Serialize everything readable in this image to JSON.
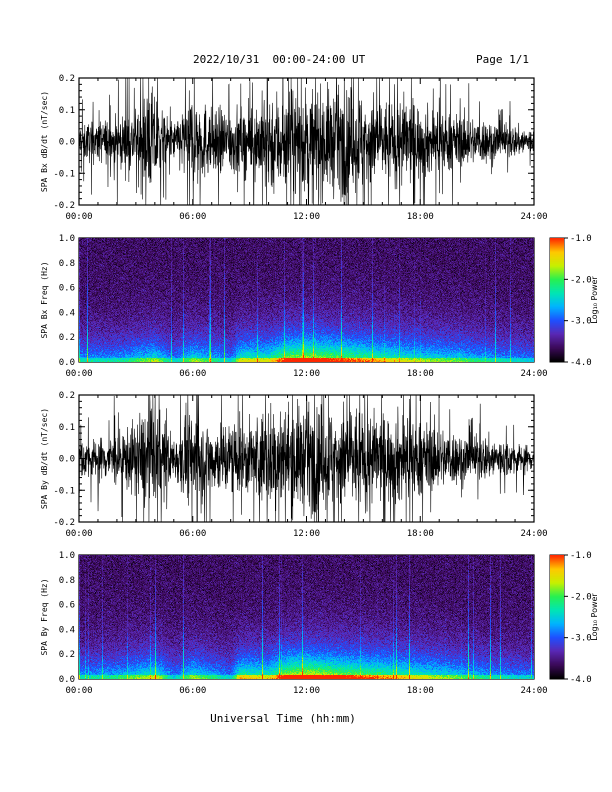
{
  "header": {
    "title": "2022/10/31  00:00-24:00 UT",
    "page": "Page 1/1"
  },
  "x_axis": {
    "label": "Universal Time (hh:mm)",
    "ticks": [
      "00:00",
      "06:00",
      "12:00",
      "18:00",
      "24:00"
    ],
    "range_hours": [
      0,
      24
    ]
  },
  "colors": {
    "trace": "#000000",
    "colormap": [
      "#000000",
      "#3c0a5a",
      "#5a28b4",
      "#1e50ff",
      "#00b4ff",
      "#00e6b4",
      "#28f050",
      "#c8f000",
      "#ffc800",
      "#ff2800"
    ]
  },
  "chart_data": [
    {
      "type": "line",
      "name": "bx-time-series",
      "ylabel": "SPA Bx dB/dt (nT/sec)",
      "ylim": [
        -0.2,
        0.2
      ],
      "yticks": [
        "0.2",
        "0.1",
        "0.0",
        "-0.1",
        "-0.2"
      ],
      "envelope_x_hours": [
        0,
        1,
        2,
        3,
        3.5,
        4,
        4.5,
        5,
        6,
        7,
        8,
        9,
        10,
        11,
        12,
        13,
        14,
        15,
        16,
        17,
        18,
        19,
        20,
        21,
        22,
        23,
        24
      ],
      "envelope_amplitude": [
        0.07,
        0.08,
        0.09,
        0.12,
        0.2,
        0.2,
        0.1,
        0.07,
        0.2,
        0.12,
        0.13,
        0.12,
        0.2,
        0.2,
        0.2,
        0.2,
        0.2,
        0.2,
        0.15,
        0.18,
        0.14,
        0.12,
        0.1,
        0.09,
        0.08,
        0.06,
        0.05
      ]
    },
    {
      "type": "heatmap",
      "name": "bx-spectrogram",
      "ylabel": "SPA Bx Freq (Hz)",
      "ylim": [
        0,
        1.0
      ],
      "yticks": [
        "1.0",
        "0.8",
        "0.6",
        "0.4",
        "0.2",
        "0.0"
      ],
      "colorbar_label": "Log₁₀ Power",
      "colorbar_ticks": [
        "-1.0",
        "-2.0",
        "-3.0",
        "-4.0"
      ],
      "zlim": [
        -4.0,
        -1.0
      ],
      "activity_x_hours": [
        0,
        2,
        4,
        5,
        6,
        8,
        8.5,
        10,
        11,
        12,
        13,
        14,
        15,
        16,
        18,
        20,
        22,
        24
      ],
      "activity_level": [
        0.35,
        0.35,
        0.5,
        0.3,
        0.5,
        0.3,
        0.55,
        0.55,
        0.75,
        0.8,
        0.75,
        0.7,
        0.65,
        0.6,
        0.5,
        0.45,
        0.35,
        0.3
      ]
    },
    {
      "type": "line",
      "name": "by-time-series",
      "ylabel": "SPA By dB/dt (nT/sec)",
      "ylim": [
        -0.2,
        0.2
      ],
      "yticks": [
        "0.2",
        "0.1",
        "0.0",
        "-0.1",
        "-0.2"
      ],
      "envelope_x_hours": [
        0,
        1,
        2,
        3,
        3.5,
        4,
        4.5,
        5,
        6,
        7,
        8,
        9,
        10,
        11,
        12,
        13,
        14,
        15,
        16,
        17,
        18,
        19,
        20,
        21,
        22,
        23,
        24
      ],
      "envelope_amplitude": [
        0.07,
        0.08,
        0.1,
        0.14,
        0.2,
        0.2,
        0.14,
        0.08,
        0.2,
        0.13,
        0.15,
        0.14,
        0.2,
        0.2,
        0.2,
        0.2,
        0.2,
        0.2,
        0.16,
        0.18,
        0.14,
        0.12,
        0.1,
        0.09,
        0.08,
        0.06,
        0.05
      ]
    },
    {
      "type": "heatmap",
      "name": "by-spectrogram",
      "ylabel": "SPA By Freq (Hz)",
      "ylim": [
        0,
        1.0
      ],
      "yticks": [
        "1.0",
        "0.8",
        "0.6",
        "0.4",
        "0.2",
        "0.0"
      ],
      "colorbar_label": "Log₁₀ Power",
      "colorbar_ticks": [
        "-1.0",
        "-2.0",
        "-3.0",
        "-4.0"
      ],
      "zlim": [
        -4.0,
        -1.0
      ],
      "activity_x_hours": [
        0,
        2,
        4,
        5,
        6,
        8,
        8.5,
        10,
        11,
        12,
        13,
        14,
        15,
        16,
        18,
        20,
        22,
        24
      ],
      "activity_level": [
        0.35,
        0.4,
        0.55,
        0.3,
        0.5,
        0.3,
        0.6,
        0.55,
        0.8,
        0.85,
        0.8,
        0.75,
        0.7,
        0.65,
        0.55,
        0.45,
        0.35,
        0.3
      ]
    }
  ]
}
